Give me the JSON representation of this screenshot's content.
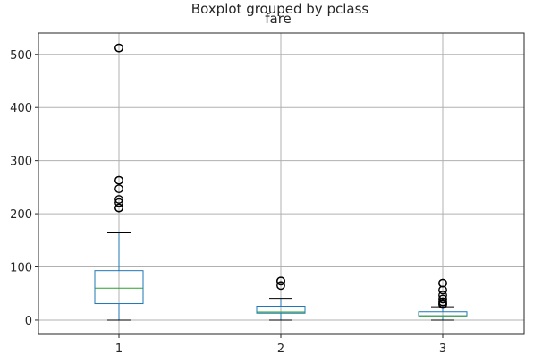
{
  "chart_data": {
    "type": "box",
    "title": "Boxplot grouped by pclass",
    "subtitle": "fare",
    "categories": [
      "1",
      "2",
      "3"
    ],
    "xlabel": "",
    "ylabel": "",
    "ylim": [
      -27,
      540
    ],
    "yticks": [
      0,
      100,
      200,
      300,
      400,
      500
    ],
    "grid": true,
    "boxes": [
      {
        "category": "1",
        "whisker_low": 0,
        "q1": 31,
        "median": 60,
        "q3": 93,
        "whisker_high": 164,
        "outliers": [
          512,
          512,
          263,
          263,
          247,
          227,
          221,
          211,
          211
        ]
      },
      {
        "category": "2",
        "whisker_low": 0,
        "q1": 13,
        "median": 15,
        "q3": 26,
        "whisker_high": 41,
        "outliers": [
          73.5,
          73.5,
          65
        ]
      },
      {
        "category": "3",
        "whisker_low": 0,
        "q1": 8,
        "median": 8,
        "q3": 15.5,
        "whisker_high": 25,
        "outliers": [
          69.5,
          69.5,
          56.5,
          46.9,
          39.7,
          34.4,
          31.3,
          29.1
        ]
      }
    ],
    "colors": {
      "box": "#1f77b4",
      "median": "#2ca02c",
      "whisker": "#000000",
      "grid": "#b0b0b0",
      "axis": "#262626"
    }
  }
}
